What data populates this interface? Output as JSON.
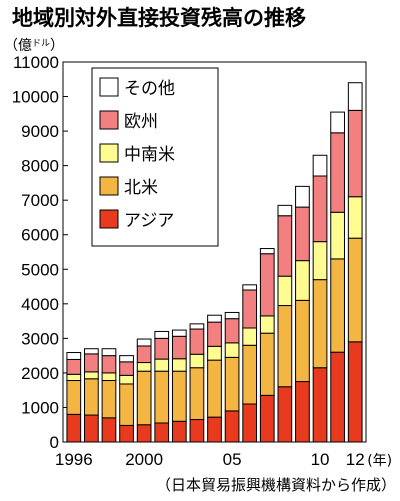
{
  "chart_data": {
    "type": "bar",
    "stacked": true,
    "title": "地域別対外直接投資残高の推移",
    "unit_label": "（億",
    "unit_small": "ドル",
    "unit_close": "）",
    "source": "（日本貿易振興機構資料から作成）",
    "ylim": [
      0,
      11000
    ],
    "y_ticks": [
      0,
      1000,
      2000,
      3000,
      4000,
      5000,
      6000,
      7000,
      8000,
      9000,
      10000,
      11000
    ],
    "y_tick_labels": [
      "0",
      "1000",
      "2000",
      "3000",
      "4000",
      "5000",
      "6000",
      "7000",
      "8000",
      "9000",
      "10000",
      "11000"
    ],
    "categories": [
      1996,
      1997,
      1998,
      1999,
      2000,
      2001,
      2002,
      2003,
      2004,
      2005,
      2006,
      2007,
      2008,
      2009,
      2010,
      2011,
      2012
    ],
    "x_tick_labels": [
      {
        "index": 0,
        "text": "1996"
      },
      {
        "index": 4,
        "text": "2000"
      },
      {
        "index": 9,
        "text": "05"
      },
      {
        "index": 14,
        "text": "10"
      },
      {
        "index": 16,
        "text": "12"
      }
    ],
    "x_unit": "(年)",
    "series": [
      {
        "name": "アジア",
        "color": "#e83a1e",
        "values": [
          800,
          780,
          700,
          480,
          500,
          550,
          600,
          650,
          720,
          900,
          1100,
          1350,
          1600,
          1750,
          2150,
          2600,
          2900
        ]
      },
      {
        "name": "北米",
        "color": "#f4b642",
        "values": [
          980,
          1050,
          1080,
          1200,
          1550,
          1500,
          1450,
          1500,
          1650,
          1550,
          1700,
          1800,
          2350,
          2350,
          2550,
          2700,
          3000
        ]
      },
      {
        "name": "中南米",
        "color": "#fefb90",
        "values": [
          180,
          200,
          220,
          250,
          250,
          350,
          360,
          390,
          400,
          420,
          500,
          500,
          850,
          1150,
          1100,
          1350,
          1200
        ]
      },
      {
        "name": "欧州",
        "color": "#f28080",
        "values": [
          430,
          520,
          500,
          390,
          480,
          600,
          650,
          730,
          700,
          700,
          1100,
          1800,
          1750,
          1550,
          1900,
          2300,
          2500
        ]
      },
      {
        "name": "その他",
        "color": "#ffffff",
        "values": [
          200,
          150,
          200,
          180,
          200,
          200,
          180,
          150,
          200,
          180,
          150,
          150,
          300,
          600,
          600,
          600,
          800
        ]
      }
    ],
    "legend_order": [
      "その他",
      "欧州",
      "中南米",
      "北米",
      "アジア"
    ],
    "legend_position": "top-left",
    "grid": false
  }
}
